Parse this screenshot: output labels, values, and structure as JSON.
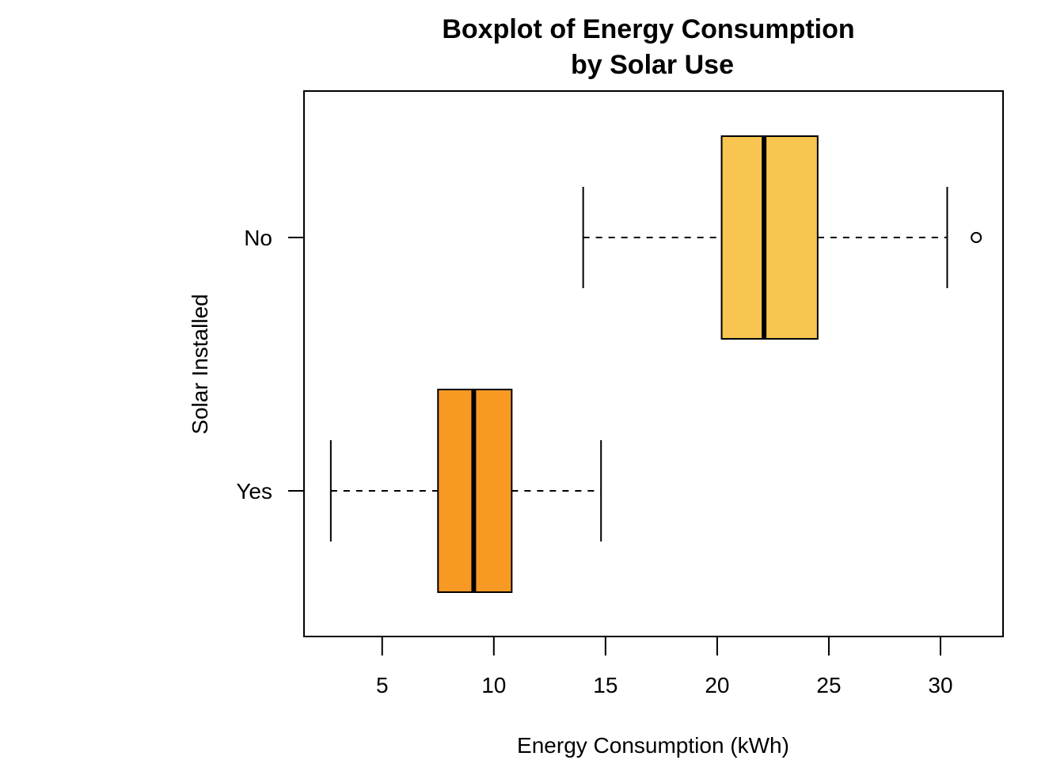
{
  "chart_data": {
    "type": "boxplot",
    "orientation": "horizontal",
    "title": [
      "Boxplot of Energy Consumption",
      "by Solar Use"
    ],
    "xlabel": "Energy Consumption (kWh)",
    "ylabel": "Solar Installed",
    "xlim": [
      1.5,
      32.8
    ],
    "xticks": [
      5,
      10,
      15,
      20,
      25,
      30
    ],
    "groups": [
      {
        "name": "Yes",
        "whisker_low": 2.7,
        "q1": 7.5,
        "median": 9.1,
        "q3": 10.8,
        "whisker_high": 14.8,
        "outliers": [],
        "color": "#F89923"
      },
      {
        "name": "No",
        "whisker_low": 14.0,
        "q1": 20.2,
        "median": 22.1,
        "q3": 24.5,
        "whisker_high": 30.3,
        "outliers": [
          31.6
        ],
        "color": "#F8C550"
      }
    ],
    "grid": false,
    "legend": "none"
  }
}
